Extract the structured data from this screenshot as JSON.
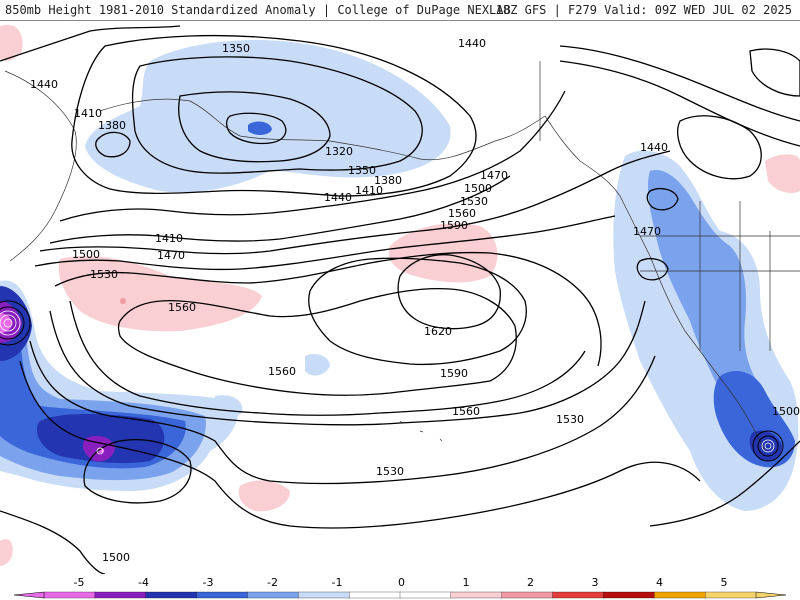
{
  "header": {
    "left_title": "850mb Height 1981-2010 Standardized Anomaly | College of DuPage NEXLAB",
    "right_title": "18Z GFS | F279 Valid: 09Z WED JUL 02 2025"
  },
  "colorbar": {
    "ticks": [
      "-5",
      "-4",
      "-3",
      "-2",
      "-1",
      "0",
      "1",
      "2",
      "3",
      "4",
      "5"
    ],
    "colors": [
      "#e86ae8",
      "#8a1fbf",
      "#2335b0",
      "#3a66d9",
      "#7ba2ec",
      "#c8dcf7",
      "#ffffff",
      "#ffffff",
      "#f9cfd3",
      "#f29aa3",
      "#e33c3c",
      "#b50f0f",
      "#f2a400",
      "#f7d36a"
    ]
  },
  "contour_labels": [
    "1350",
    "1440",
    "1440",
    "1410",
    "1380",
    "1320",
    "1350",
    "1380",
    "1410",
    "1440",
    "1470",
    "1500",
    "1530",
    "1560",
    "1590",
    "1410",
    "1470",
    "1500",
    "1530",
    "1560",
    "1620",
    "1560",
    "1590",
    "1560",
    "1530",
    "1530",
    "1440",
    "1470",
    "1500",
    "1500"
  ],
  "icons": [
    "colorbar-left-triangle",
    "colorbar-right-triangle"
  ]
}
